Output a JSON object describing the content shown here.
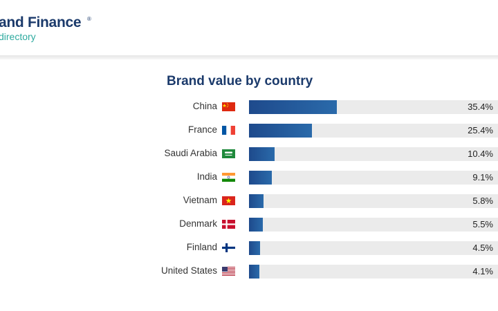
{
  "header": {
    "logo_text": "and Finance",
    "logo_reg": "®",
    "logo_sub": "directory"
  },
  "chart_data": {
    "type": "bar",
    "orientation": "horizontal",
    "title": "Brand value by country",
    "categories": [
      "China",
      "France",
      "Saudi Arabia",
      "India",
      "Vietnam",
      "Denmark",
      "Finland",
      "United States"
    ],
    "values": [
      35.4,
      25.4,
      10.4,
      9.1,
      5.8,
      5.5,
      4.5,
      4.1
    ],
    "value_labels": [
      "35.4%",
      "25.4%",
      "10.4%",
      "9.1%",
      "5.8%",
      "5.5%",
      "4.5%",
      "4.1%"
    ],
    "flags": [
      "flag-china-icon",
      "flag-france-icon",
      "flag-saudi-arabia-icon",
      "flag-india-icon",
      "flag-vietnam-icon",
      "flag-denmark-icon",
      "flag-finland-icon",
      "flag-united-states-icon"
    ],
    "xlim": [
      0,
      100
    ],
    "colors": {
      "bar": "#1e4a8c",
      "track": "#ebebeb",
      "title": "#1b3a6b"
    }
  }
}
